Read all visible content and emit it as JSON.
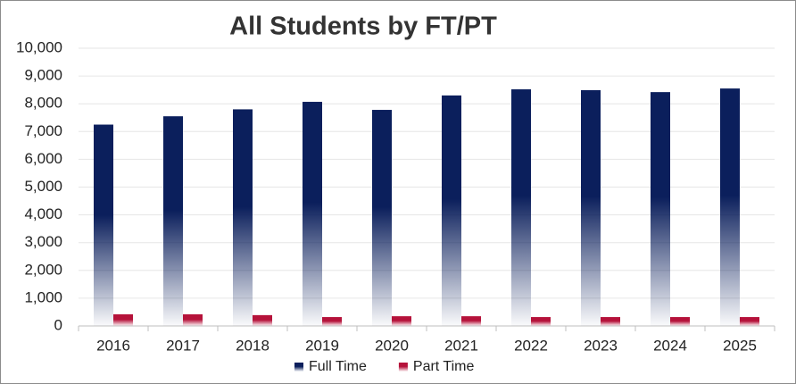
{
  "chart_data": {
    "type": "bar",
    "title": "All Students by FT/PT",
    "categories": [
      "2016",
      "2017",
      "2018",
      "2019",
      "2020",
      "2021",
      "2022",
      "2023",
      "2024",
      "2025"
    ],
    "series": [
      {
        "name": "Full Time",
        "color": "#0b1f5c",
        "values": [
          7250,
          7550,
          7800,
          8070,
          7780,
          8300,
          8520,
          8490,
          8420,
          8550
        ]
      },
      {
        "name": "Part Time",
        "color": "#b5123a",
        "values": [
          420,
          420,
          390,
          320,
          350,
          350,
          320,
          320,
          320,
          320
        ]
      }
    ],
    "ylim": [
      0,
      10000
    ],
    "yticks": [
      0,
      {
        "value": 1000,
        "label": "1,000"
      },
      {
        "value": 2000,
        "label": "2,000"
      },
      {
        "value": 3000,
        "label": "3,000"
      },
      {
        "value": 4000,
        "label": "4,000"
      },
      {
        "value": 5000,
        "label": "5,000"
      },
      {
        "value": 6000,
        "label": "6,000"
      },
      {
        "value": 7000,
        "label": "7,000"
      },
      {
        "value": 8000,
        "label": "8,000"
      },
      {
        "value": 9000,
        "label": "9,000"
      },
      {
        "value": 10000,
        "label": "10,000"
      }
    ],
    "grid": true,
    "legend": "bottom"
  }
}
